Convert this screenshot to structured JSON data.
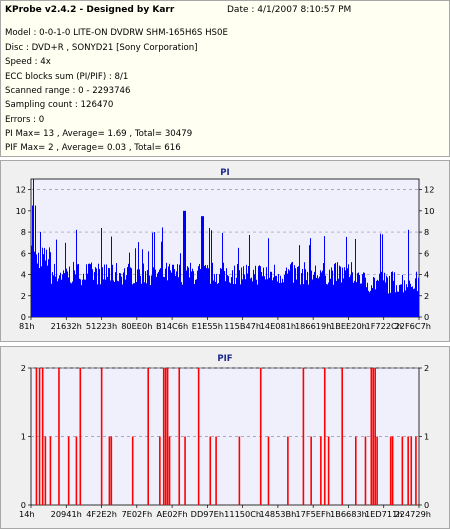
{
  "info": {
    "title": "KProbe v2.4.2 - Designed by Karr",
    "date": "Date : 4/1/2007 8:10:57 PM",
    "lines": [
      "Model : 0-0-1-0 LITE-ON DVDRW SHM-165H6S HS0E",
      "Disc : DVD+R , SONYD21 [Sony Corporation]",
      "Speed : 4x",
      "ECC blocks sum (PI/PIF) : 8/1",
      "Scanned range : 0 - 2293746",
      "Sampling count : 126470",
      "Errors : 0",
      "PI Max= 13 , Average= 1.69 , Total= 30479",
      "PIF Max= 2 , Average= 0.03 , Total= 616"
    ]
  },
  "chart_data": [
    {
      "type": "bar",
      "title": "PI",
      "ylim": [
        0,
        13
      ],
      "yticks": [
        0,
        2,
        4,
        6,
        8,
        10,
        12
      ],
      "dashed_grid": [
        4,
        8,
        12
      ],
      "x_tick_labels": [
        "81h",
        "21632h",
        "51223h",
        "80EE0h",
        "B14C6h",
        "E1E55h",
        "115B47h",
        "14E081h",
        "186619h",
        "1BEE20h",
        "1F722Ch",
        "22F6C7h"
      ],
      "bar_color": "#0000ff",
      "max": 13,
      "average": 1.69,
      "total": 30479
    },
    {
      "type": "bar",
      "title": "PIF",
      "ylim": [
        0,
        2
      ],
      "yticks": [
        0,
        1,
        2
      ],
      "dashed_grid": [
        1,
        2
      ],
      "x_tick_labels": [
        "14h",
        "20941h",
        "4F2E2h",
        "7E02Fh",
        "AE02Fh",
        "DD97Eh",
        "11150Ch",
        "14853Bh",
        "17F5EFh",
        "1B6683h",
        "1ED711h",
        "224729h"
      ],
      "bar_color": "#ff0000",
      "spikes_at_fraction": [
        0.012,
        0.02,
        0.028,
        0.035,
        0.048,
        0.07,
        0.095,
        0.115,
        0.125,
        0.18,
        0.2,
        0.205,
        0.26,
        0.3,
        0.33,
        0.34,
        0.345,
        0.35,
        0.355,
        0.38,
        0.395,
        0.43,
        0.46,
        0.475,
        0.535,
        0.59,
        0.61,
        0.66,
        0.7,
        0.72,
        0.745,
        0.755,
        0.765,
        0.8,
        0.835,
        0.86,
        0.875,
        0.88,
        0.885,
        0.89,
        0.925,
        0.93,
        0.955,
        0.97,
        0.978,
        0.99
      ],
      "spike_values": [
        2,
        2,
        2,
        1,
        1,
        2,
        1,
        1,
        2,
        2,
        1,
        1,
        1,
        2,
        1,
        2,
        2,
        2,
        1,
        2,
        1,
        2,
        1,
        1,
        1,
        2,
        1,
        1,
        2,
        1,
        1,
        2,
        1,
        2,
        1,
        1,
        2,
        2,
        2,
        1,
        1,
        1,
        1,
        1,
        1,
        1
      ],
      "max": 2,
      "average": 0.03,
      "total": 616
    }
  ]
}
